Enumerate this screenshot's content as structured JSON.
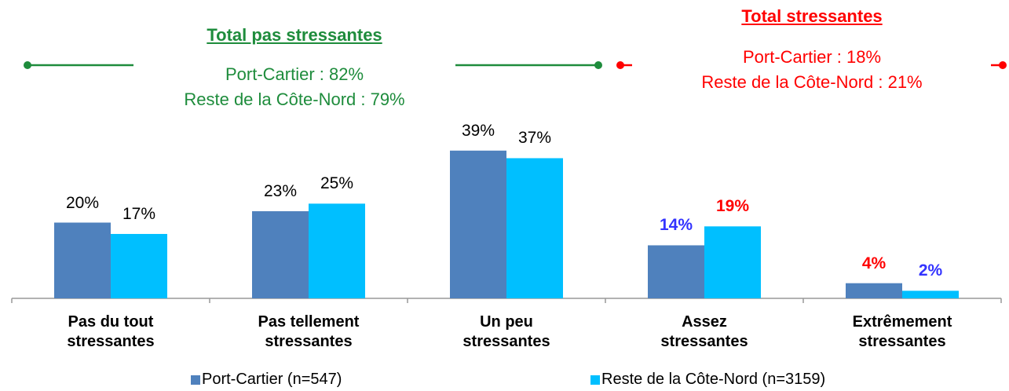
{
  "chart_data": {
    "type": "bar",
    "categories": [
      "Pas du tout\nstressantes",
      "Pas tellement\nstressantes",
      "Un peu\nstressantes",
      "Assez\nstressantes",
      "Extrêmement\nstressantes"
    ],
    "series": [
      {
        "name": "Port-Cartier (n=547)",
        "color": "#4f81bd",
        "values": [
          20,
          23,
          39,
          14,
          4
        ],
        "value_labels": [
          "20%",
          "23%",
          "39%",
          "14%",
          "4%"
        ],
        "value_label_colors": [
          "#000000",
          "#000000",
          "#000000",
          "#3333ff",
          "#ff0000"
        ],
        "value_label_bold": [
          false,
          false,
          false,
          true,
          true
        ]
      },
      {
        "name": "Reste de la Côte-Nord (n=3159)",
        "color": "#00bfff",
        "values": [
          17,
          25,
          37,
          19,
          2
        ],
        "value_labels": [
          "17%",
          "25%",
          "37%",
          "19%",
          "2%"
        ],
        "value_label_colors": [
          "#000000",
          "#000000",
          "#000000",
          "#ff0000",
          "#3333ff"
        ],
        "value_label_bold": [
          false,
          false,
          false,
          true,
          true
        ]
      }
    ],
    "ylim": [
      0,
      40
    ],
    "annotations": [
      {
        "title": "Total pas stressantes",
        "lines": [
          "Port-Cartier : 82%",
          "Reste de la Côte-Nord : 79%"
        ],
        "color": "#1e8c3c"
      },
      {
        "title": "Total stressantes",
        "lines": [
          "Port-Cartier : 18%",
          "Reste de la Côte-Nord : 21%"
        ],
        "color": "#ff0000"
      }
    ]
  }
}
